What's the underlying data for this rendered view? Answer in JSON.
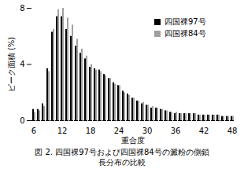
{
  "chart_data": {
    "type": "bar",
    "title": "図 2. 四国裸97号および四国裸84号の澱粉の側鎖長分布の比較",
    "x_label": "重合度",
    "y_label": "ピーク面積 (%)",
    "x": [
      6,
      7,
      8,
      9,
      10,
      11,
      12,
      13,
      14,
      15,
      16,
      17,
      18,
      19,
      20,
      21,
      22,
      23,
      24,
      25,
      26,
      27,
      28,
      29,
      30,
      31,
      32,
      33,
      34,
      35,
      36,
      37,
      38,
      39,
      40,
      41,
      42,
      43,
      44,
      45,
      46,
      47,
      48
    ],
    "xticks": [
      6,
      12,
      18,
      24,
      30,
      36,
      42,
      48
    ],
    "series": [
      {
        "name": "四国裸97号",
        "color": "#000000",
        "values": [
          0.8,
          0.8,
          1.2,
          3.7,
          6.3,
          7.4,
          7.4,
          6.5,
          6.0,
          5.3,
          4.8,
          4.4,
          3.8,
          3.7,
          3.6,
          3.3,
          3.0,
          2.7,
          2.5,
          2.1,
          1.9,
          1.6,
          1.4,
          1.2,
          1.1,
          0.9,
          0.9,
          0.8,
          0.7,
          0.6,
          0.5,
          0.5,
          0.5,
          0.5,
          0.5,
          0.4,
          0.4,
          0.4,
          0.4,
          0.4,
          0.3,
          0.3,
          0.3
        ]
      },
      {
        "name": "四国裸84号",
        "color": "#a0a0a0",
        "values": [
          0.6,
          0.7,
          1.0,
          3.5,
          6.5,
          7.9,
          8.0,
          7.3,
          6.8,
          5.8,
          5.1,
          4.6,
          4.0,
          3.6,
          3.5,
          3.2,
          3.0,
          2.6,
          2.5,
          2.0,
          1.8,
          1.6,
          1.4,
          1.3,
          1.1,
          1.0,
          0.9,
          0.8,
          0.7,
          0.6,
          0.6,
          0.5,
          0.5,
          0.5,
          0.5,
          0.4,
          0.4,
          0.4,
          0.4,
          0.4,
          0.3,
          0.3,
          0.3
        ]
      }
    ],
    "ylim": [
      0,
      8
    ],
    "yticks": [
      0,
      4,
      8
    ],
    "legend": "top-right",
    "grid": false
  }
}
